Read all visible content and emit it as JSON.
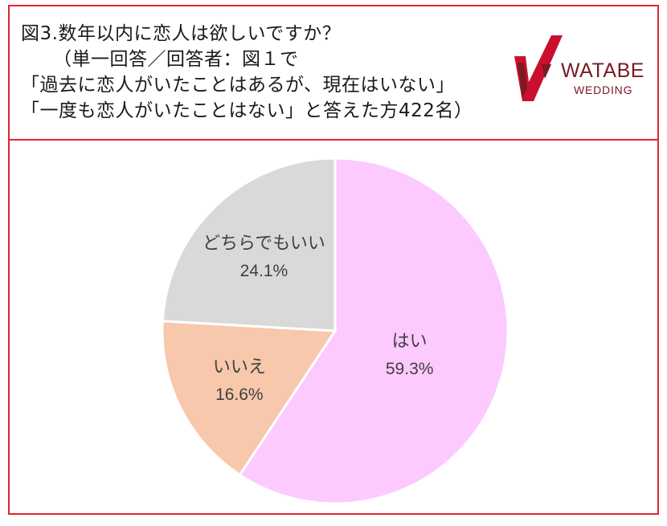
{
  "header": {
    "lines": [
      "図3.数年以内に恋人は欲しいですか？",
      "（単一回答／回答者：図１で",
      "「過去に恋人がいたことはあるが、現在はいない」",
      "「一度も恋人がいたことはない」と答えた方422名）"
    ]
  },
  "logo": {
    "brand": "WATABE",
    "sub": "WEDDING",
    "colors": {
      "mark": "#c8102e",
      "dark": "#7a1a24"
    }
  },
  "chart_data": {
    "type": "pie",
    "slices": [
      {
        "label": "はい",
        "value": 59.3,
        "pct_label": "59.3%",
        "color": "#fccaff"
      },
      {
        "label": "いいえ",
        "value": 16.6,
        "pct_label": "16.6%",
        "color": "#f7c8ab"
      },
      {
        "label": "どちらでもいい",
        "value": 24.1,
        "pct_label": "24.1%",
        "color": "#d9d9d9"
      }
    ],
    "start": "12 o'clock",
    "direction": "clockwise",
    "legend": "none"
  }
}
